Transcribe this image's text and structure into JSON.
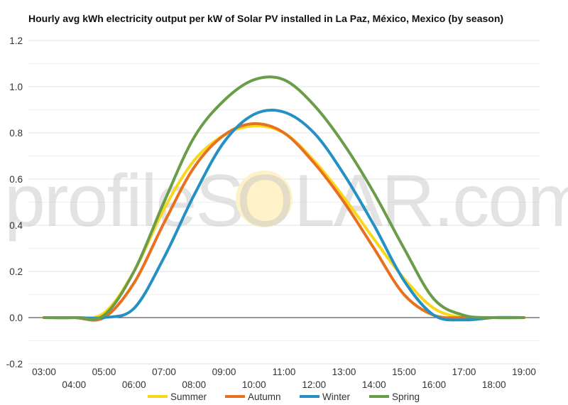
{
  "watermark": {
    "left": "profileS",
    "mid": "O",
    "right": "LAR.com"
  },
  "chart_data": {
    "type": "line",
    "title": "Hourly avg kWh electricity output per kW of Solar PV installed in La Paz, México, Mexico (by season)",
    "xlabel": "",
    "ylabel": "",
    "ylim": [
      -0.2,
      1.2
    ],
    "yticks": [
      -0.2,
      0.0,
      0.2,
      0.4,
      0.6,
      0.8,
      1.0,
      1.2
    ],
    "ytick_labels": [
      "-0.2",
      "0.0",
      "0.2",
      "0.4",
      "0.6",
      "0.8",
      "1.0",
      "1.2"
    ],
    "xlim": [
      3,
      19
    ],
    "x": [
      3,
      4,
      5,
      6,
      7,
      8,
      9,
      10,
      11,
      12,
      13,
      14,
      15,
      16,
      17,
      18,
      19
    ],
    "x_labels": [
      "03:00",
      "04:00",
      "05:00",
      "06:00",
      "07:00",
      "08:00",
      "09:00",
      "10:00",
      "11:00",
      "12:00",
      "13:00",
      "14:00",
      "15:00",
      "16:00",
      "17:00",
      "18:00",
      "19:00"
    ],
    "grid": true,
    "legend_position": "bottom",
    "series": [
      {
        "name": "Summer",
        "color": "#f9d71c",
        "values": [
          0,
          0,
          0.02,
          0.2,
          0.47,
          0.68,
          0.79,
          0.83,
          0.8,
          0.68,
          0.52,
          0.34,
          0.17,
          0.04,
          0,
          0,
          0
        ]
      },
      {
        "name": "Autumn",
        "color": "#e8701f",
        "values": [
          0,
          0,
          0,
          0.15,
          0.41,
          0.65,
          0.79,
          0.84,
          0.8,
          0.67,
          0.5,
          0.3,
          0.1,
          0.01,
          0,
          0,
          0
        ]
      },
      {
        "name": "Winter",
        "color": "#2590c3",
        "values": [
          0,
          0,
          0,
          0.04,
          0.26,
          0.53,
          0.76,
          0.88,
          0.89,
          0.8,
          0.62,
          0.4,
          0.16,
          0.01,
          -0.01,
          0,
          0
        ]
      },
      {
        "name": "Spring",
        "color": "#6a9d4a",
        "values": [
          0,
          0,
          0.01,
          0.2,
          0.5,
          0.78,
          0.94,
          1.03,
          1.03,
          0.92,
          0.75,
          0.54,
          0.3,
          0.08,
          0.01,
          0,
          0
        ]
      }
    ]
  }
}
